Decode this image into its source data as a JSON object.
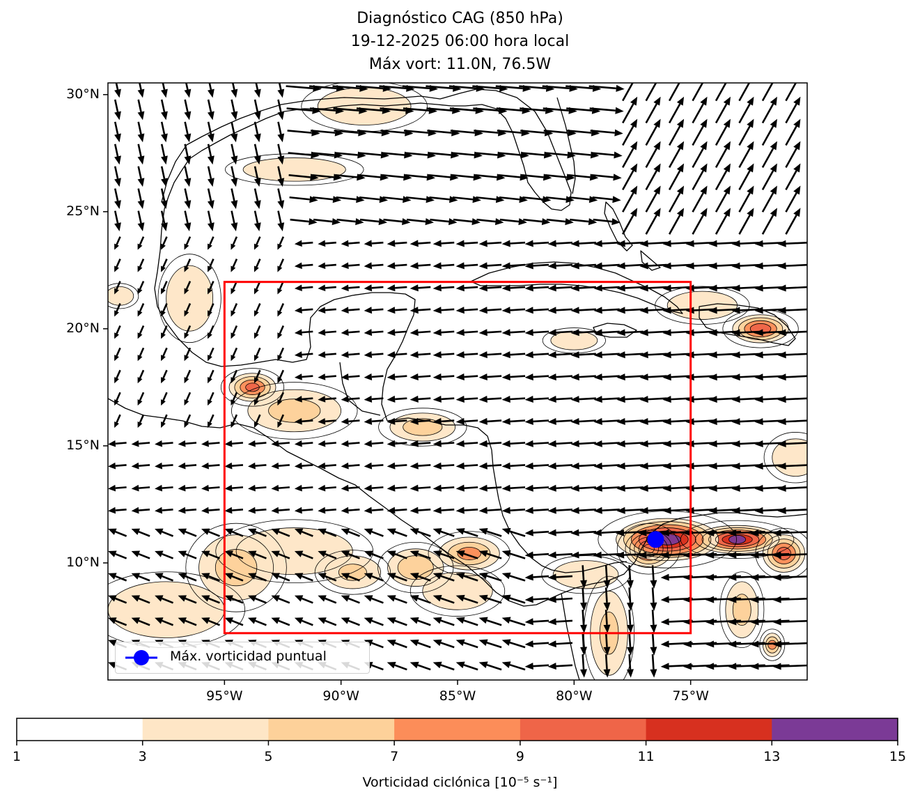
{
  "title": {
    "line1": "Diagnóstico CAG (850 hPa)",
    "line2": "19-12-2025 06:00 hora local",
    "line3": "Máx vort: 11.0N, 76.5W"
  },
  "chart_data": {
    "type": "map",
    "projection": "lat-lon",
    "extent": {
      "lon": [
        -100,
        -70
      ],
      "lat": [
        5,
        30.5
      ]
    },
    "lat_ticks": [
      {
        "value": 10,
        "label": "10°N"
      },
      {
        "value": 15,
        "label": "15°N"
      },
      {
        "value": 20,
        "label": "20°N"
      },
      {
        "value": 25,
        "label": "25°N"
      },
      {
        "value": 30,
        "label": "30°N"
      }
    ],
    "lon_ticks": [
      {
        "value": -95,
        "label": "95°W"
      },
      {
        "value": -90,
        "label": "90°W"
      },
      {
        "value": -85,
        "label": "85°W"
      },
      {
        "value": -80,
        "label": "80°W"
      },
      {
        "value": -75,
        "label": "75°W"
      }
    ],
    "analysis_box": {
      "lon": [
        -95,
        -75
      ],
      "lat": [
        7,
        22
      ],
      "color": "#ff0000"
    },
    "max_vorticity_point": {
      "lat": 11.0,
      "lon": -76.5,
      "color": "#0000ff"
    },
    "legend": {
      "label": "Máx. vorticidad puntual",
      "placement": "lower-left"
    },
    "colorbar": {
      "label": "Vorticidad ciclónica [10⁻⁵ s⁻¹]",
      "levels": [
        1,
        3,
        5,
        7,
        9,
        11,
        13,
        15
      ],
      "colors": [
        "#ffffff",
        "#fee6c6",
        "#fdd19a",
        "#fc8d59",
        "#ef6548",
        "#d7301f",
        "#7b3a96"
      ]
    },
    "vorticity_blobs": [
      {
        "lon": -76.0,
        "lat": 11.0,
        "value": 14.5,
        "rx": 2.2,
        "ry": 0.9
      },
      {
        "lon": -73.0,
        "lat": 11.0,
        "value": 13.5,
        "rx": 1.8,
        "ry": 0.6
      },
      {
        "lon": -76.8,
        "lat": 10.6,
        "value": 11.5,
        "rx": 1.0,
        "ry": 0.8
      },
      {
        "lon": -71.0,
        "lat": 10.4,
        "value": 10.0,
        "rx": 0.9,
        "ry": 0.8
      },
      {
        "lon": -72.0,
        "lat": 20.0,
        "value": 10.5,
        "rx": 1.2,
        "ry": 0.6
      },
      {
        "lon": -93.8,
        "lat": 17.5,
        "value": 9.5,
        "rx": 1.0,
        "ry": 0.6
      },
      {
        "lon": -92.0,
        "lat": 16.5,
        "value": 5.5,
        "rx": 2.0,
        "ry": 0.9
      },
      {
        "lon": -86.5,
        "lat": 15.8,
        "value": 6.0,
        "rx": 1.4,
        "ry": 0.6
      },
      {
        "lon": -84.5,
        "lat": 10.4,
        "value": 7.5,
        "rx": 1.3,
        "ry": 0.7
      },
      {
        "lon": -86.8,
        "lat": 9.8,
        "value": 6.5,
        "rx": 1.2,
        "ry": 0.8
      },
      {
        "lon": -89.5,
        "lat": 9.6,
        "value": 5.0,
        "rx": 1.2,
        "ry": 0.7
      },
      {
        "lon": -94.5,
        "lat": 9.8,
        "value": 5.5,
        "rx": 1.6,
        "ry": 1.4
      },
      {
        "lon": -97.5,
        "lat": 8.0,
        "value": 4.0,
        "rx": 2.5,
        "ry": 1.2
      },
      {
        "lon": -92.0,
        "lat": 10.5,
        "value": 3.5,
        "rx": 2.5,
        "ry": 1.0
      },
      {
        "lon": -85.0,
        "lat": 8.8,
        "value": 4.0,
        "rx": 1.5,
        "ry": 0.8
      },
      {
        "lon": -71.5,
        "lat": 6.5,
        "value": 7.5,
        "rx": 0.4,
        "ry": 0.5
      },
      {
        "lon": -72.8,
        "lat": 8.0,
        "value": 5.5,
        "rx": 0.7,
        "ry": 1.2
      },
      {
        "lon": -78.5,
        "lat": 7.0,
        "value": 5.0,
        "rx": 0.8,
        "ry": 1.8
      },
      {
        "lon": -79.5,
        "lat": 9.5,
        "value": 4.0,
        "rx": 1.4,
        "ry": 0.6
      },
      {
        "lon": -96.5,
        "lat": 21.3,
        "value": 4.5,
        "rx": 1.0,
        "ry": 1.4
      },
      {
        "lon": -99.5,
        "lat": 21.4,
        "value": 4.0,
        "rx": 0.6,
        "ry": 0.4
      },
      {
        "lon": -89.0,
        "lat": 29.5,
        "value": 4.5,
        "rx": 2.0,
        "ry": 0.8
      },
      {
        "lon": -92.0,
        "lat": 26.8,
        "value": 3.8,
        "rx": 2.2,
        "ry": 0.5
      },
      {
        "lon": -74.5,
        "lat": 21.0,
        "value": 3.5,
        "rx": 1.5,
        "ry": 0.6
      },
      {
        "lon": -70.5,
        "lat": 14.5,
        "value": 3.5,
        "rx": 1.0,
        "ry": 0.8
      },
      {
        "lon": -80.0,
        "lat": 19.5,
        "value": 3.6,
        "rx": 1.0,
        "ry": 0.4
      }
    ]
  }
}
